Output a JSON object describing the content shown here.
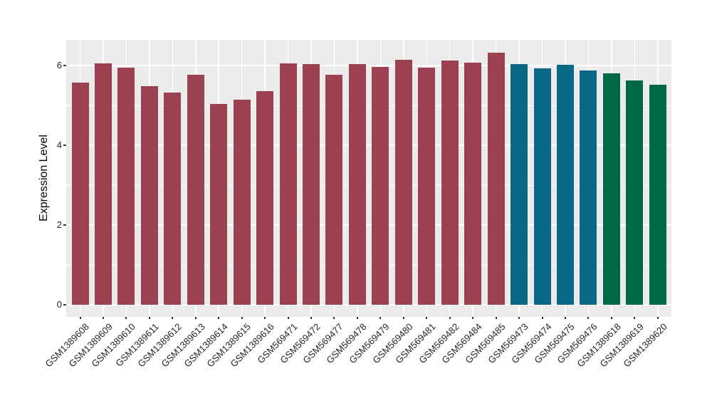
{
  "chart_data": {
    "type": "bar",
    "title": "",
    "xlabel": "",
    "ylabel": "Expression Level",
    "categories": [
      "GSM1389608",
      "GSM1389609",
      "GSM1389610",
      "GSM1389611",
      "GSM1389612",
      "GSM1389613",
      "GSM1389614",
      "GSM1389615",
      "GSM1389616",
      "GSM569471",
      "GSM569472",
      "GSM569477",
      "GSM569478",
      "GSM569479",
      "GSM569480",
      "GSM569481",
      "GSM569482",
      "GSM569484",
      "GSM569485",
      "GSM569473",
      "GSM569474",
      "GSM569475",
      "GSM569476",
      "GSM1389618",
      "GSM1389619",
      "GSM1389620"
    ],
    "values": [
      5.58,
      6.05,
      5.95,
      5.49,
      5.32,
      5.77,
      5.04,
      5.15,
      5.36,
      6.06,
      6.04,
      5.76,
      6.04,
      5.96,
      6.14,
      5.94,
      6.13,
      6.08,
      6.32,
      6.04,
      5.93,
      6.01,
      5.88,
      5.8,
      5.62,
      5.51
    ],
    "group_of_bar": [
      0,
      0,
      0,
      0,
      0,
      0,
      0,
      0,
      0,
      0,
      0,
      0,
      0,
      0,
      0,
      0,
      0,
      0,
      0,
      1,
      1,
      1,
      1,
      2,
      2,
      2
    ],
    "palette": [
      "#9b4150",
      "#0a6786",
      "#006847"
    ],
    "y_ticks": [
      0,
      2,
      4,
      6
    ],
    "y_minor_gridlines": [
      1,
      3,
      5
    ],
    "ylim": [
      -0.32,
      6.67
    ],
    "grid": "on",
    "legend": "none",
    "panel_background": "#ebebeb",
    "grid_color": "#ffffff",
    "tick_color": "#333333",
    "text_color": "#262626"
  }
}
